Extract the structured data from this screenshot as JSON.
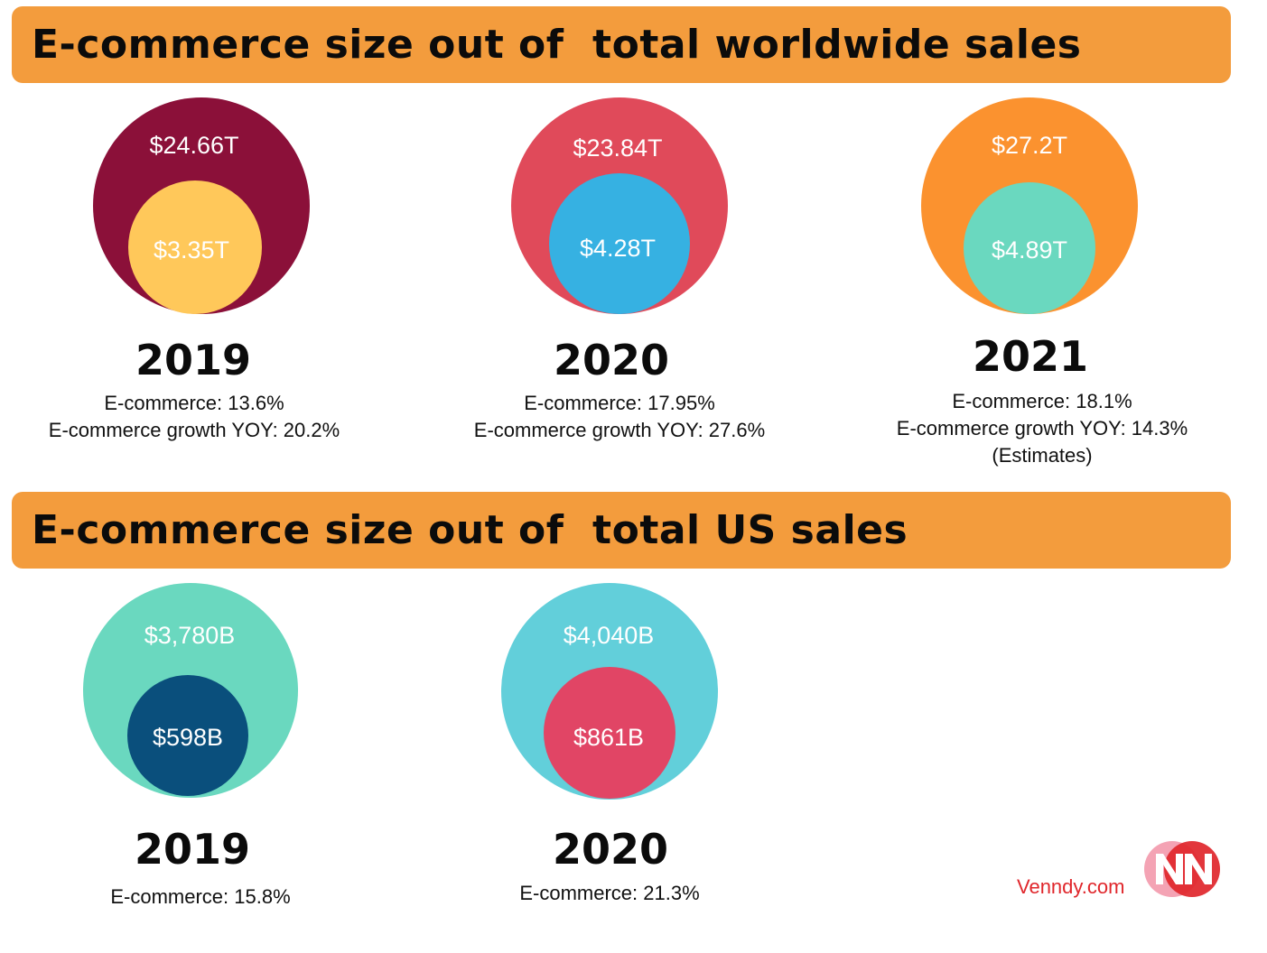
{
  "worldwide": {
    "title": "E-commerce size out of  total worldwide sales",
    "panels": [
      {
        "year": "2019",
        "total_label": "$24.66T",
        "ecom_label": "$3.35T",
        "stats": [
          "E-commerce: 13.6%",
          "E-commerce growth YOY: 20.2%"
        ],
        "outer_color": "#8b1039",
        "inner_color": "#ffc85a"
      },
      {
        "year": "2020",
        "total_label": "$23.84T",
        "ecom_label": "$4.28T",
        "stats": [
          "E-commerce: 17.95%",
          "E-commerce growth YOY: 27.6%"
        ],
        "outer_color": "#e04a5a",
        "inner_color": "#36b1e2"
      },
      {
        "year": "2021",
        "total_label": "$27.2T",
        "ecom_label": "$4.89T",
        "stats": [
          "E-commerce: 18.1%",
          "E-commerce growth YOY: 14.3%",
          "(Estimates)"
        ],
        "outer_color": "#fb922f",
        "inner_color": "#6ad8bf"
      }
    ]
  },
  "us": {
    "title": "E-commerce size out of  total US sales",
    "panels": [
      {
        "year": "2019",
        "total_label": "$3,780B",
        "ecom_label": "$598B",
        "stats": [
          "E-commerce: 15.8%"
        ],
        "outer_color": "#6ad8bf",
        "inner_color": "#0a4f7c"
      },
      {
        "year": "2020",
        "total_label": "$4,040B",
        "ecom_label": "$861B",
        "stats": [
          "E-commerce: 21.3%"
        ],
        "outer_color": "#62cfda",
        "inner_color": "#e14565"
      }
    ]
  },
  "chart_data": [
    {
      "type": "nested-circle",
      "title": "E-commerce size out of  total worldwide sales",
      "categories": [
        "2019",
        "2020",
        "2021"
      ],
      "series": [
        {
          "name": "",
          "values": [
            24.66,
            23.84,
            27.2
          ]
        },
        {
          "name": "",
          "values": [
            3.35,
            4.28,
            4.89
          ]
        }
      ],
      "ecommerce_share_pct": [
        13.6,
        17.95,
        18.1
      ],
      "ecommerce_growth_yoy_pct": [
        20.2,
        27.6,
        14.3
      ]
    },
    {
      "type": "nested-circle",
      "title": "E-commerce size out of  total US sales",
      "categories": [
        "2019",
        "2020"
      ],
      "series": [
        {
          "name": "",
          "values": [
            3780,
            4040
          ]
        },
        {
          "name": "",
          "values": [
            598,
            861
          ]
        }
      ],
      "ecommerce_share_pct": [
        15.8,
        21.3
      ]
    }
  ],
  "brand": {
    "text": "Venndy.com",
    "logo_colors": [
      "#f4a3b4",
      "#e0262b"
    ]
  }
}
